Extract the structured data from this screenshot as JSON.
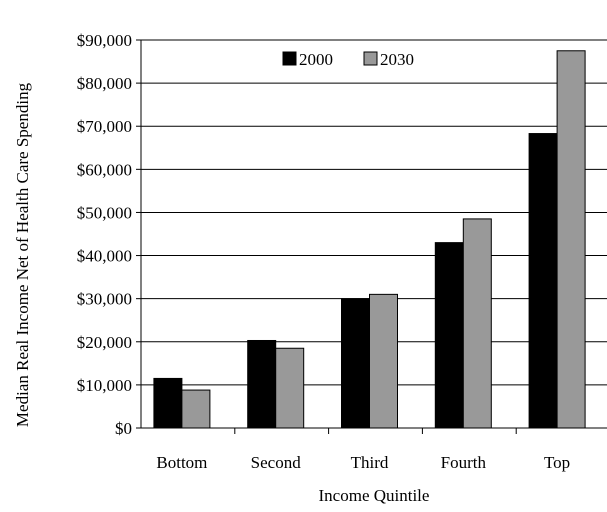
{
  "chart_data": {
    "type": "bar",
    "title": "",
    "xlabel": "Income Quintile",
    "ylabel": "Median Real Income Net of Health Care Spending",
    "categories": [
      "Bottom",
      "Second",
      "Third",
      "Fourth",
      "Top"
    ],
    "series": [
      {
        "name": "2000",
        "values": [
          11500,
          20300,
          30000,
          43000,
          68300
        ],
        "color": "#000000"
      },
      {
        "name": "2030",
        "values": [
          8800,
          18500,
          31000,
          48500,
          87500
        ],
        "color": "#999999"
      }
    ],
    "ylim": [
      0,
      90000
    ],
    "yticks": [
      0,
      10000,
      20000,
      30000,
      40000,
      50000,
      60000,
      70000,
      80000,
      90000
    ],
    "ytick_labels": [
      "$0",
      "$10,000",
      "$20,000",
      "$30,000",
      "$40,000",
      "$50,000",
      "$60,000",
      "$70,000",
      "$80,000",
      "$90,000"
    ],
    "grid": true,
    "legend_position": "top-center"
  }
}
